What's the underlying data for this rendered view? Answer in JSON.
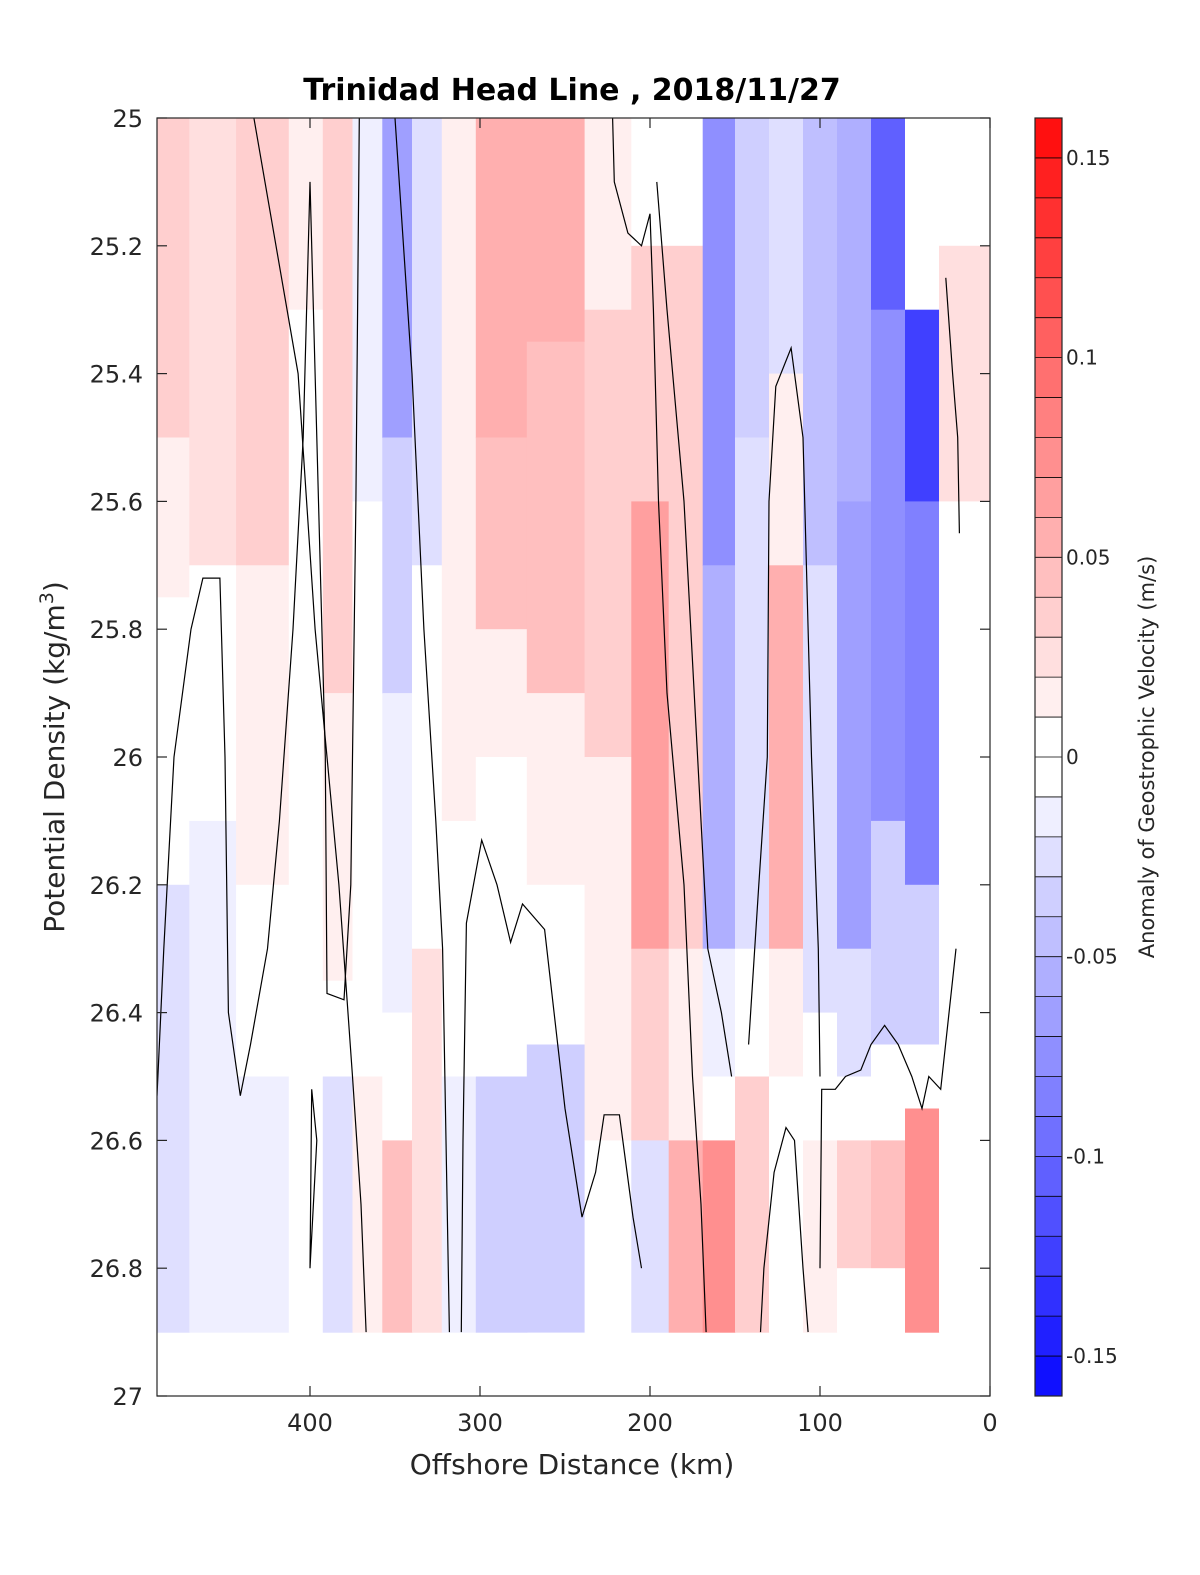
{
  "chart_data": {
    "type": "heatmap",
    "title": "Trinidad Head Line , 2018/11/27",
    "xlabel": "Offshore Distance (km)",
    "ylabel_main": "Potential Density (kg/m",
    "ylabel_sup": "3",
    "ylabel_tail": ")",
    "colorbar_label": "Anomaly of Geostrophic Velocity (m/s)",
    "xlim": [
      490,
      0
    ],
    "x_reversed": true,
    "ylim": [
      25,
      27
    ],
    "y_reversed": true,
    "clim": [
      -0.16,
      0.16
    ],
    "contour_step": 0.01,
    "x_ticks": [
      400,
      300,
      200,
      100,
      0
    ],
    "x_tick_labels": [
      "400",
      "300",
      "200",
      "100",
      "0"
    ],
    "y_ticks": [
      25,
      25.2,
      25.4,
      25.6,
      25.8,
      26,
      26.2,
      26.4,
      26.6,
      26.8,
      27
    ],
    "y_tick_labels": [
      "25",
      "25.2",
      "25.4",
      "25.6",
      "25.8",
      "26",
      "26.2",
      "26.4",
      "26.6",
      "26.8",
      "27"
    ],
    "colorbar_ticks": [
      0.15,
      0.1,
      0.05,
      0,
      -0.05,
      -0.1,
      -0.15
    ],
    "colorbar_tick_labels": [
      "0.15",
      "0.1",
      "0.05",
      "0",
      "-0.05",
      "-0.1",
      "-0.15"
    ],
    "colors": {
      "positive": "#ff0000",
      "negative": "#0000ff",
      "zero": "#ffffff",
      "contour": "#000000"
    },
    "columns": [
      {
        "x": 480,
        "segments": [
          {
            "y1": 25.0,
            "y2": 25.5,
            "v": 0.03
          },
          {
            "y1": 25.5,
            "y2": 25.75,
            "v": 0.012
          },
          {
            "y1": 25.75,
            "y2": 26.2,
            "v": 0.0
          },
          {
            "y1": 26.2,
            "y2": 26.9,
            "v": -0.015
          }
        ]
      },
      {
        "x": 462,
        "segments": [
          {
            "y1": 25.0,
            "y2": 25.7,
            "v": 0.02
          },
          {
            "y1": 25.7,
            "y2": 26.1,
            "v": 0.0
          },
          {
            "y1": 26.1,
            "y2": 26.9,
            "v": -0.01
          }
        ]
      },
      {
        "x": 425,
        "segments": [
          {
            "y1": 25.0,
            "y2": 25.7,
            "v": 0.03
          },
          {
            "y1": 25.7,
            "y2": 26.2,
            "v": 0.012
          },
          {
            "y1": 26.2,
            "y2": 26.5,
            "v": 0.0
          },
          {
            "y1": 26.5,
            "y2": 26.9,
            "v": -0.012
          }
        ]
      },
      {
        "x": 400,
        "segments": [
          {
            "y1": 25.0,
            "y2": 25.3,
            "v": 0.01
          },
          {
            "y1": 25.3,
            "y2": 26.9,
            "v": 0.0
          }
        ]
      },
      {
        "x": 385,
        "segments": [
          {
            "y1": 25.0,
            "y2": 25.9,
            "v": 0.03
          },
          {
            "y1": 25.9,
            "y2": 26.35,
            "v": 0.012
          },
          {
            "y1": 26.35,
            "y2": 26.5,
            "v": 0.0
          },
          {
            "y1": 26.5,
            "y2": 26.9,
            "v": -0.015
          }
        ]
      },
      {
        "x": 365,
        "segments": [
          {
            "y1": 25.0,
            "y2": 25.6,
            "v": -0.01
          },
          {
            "y1": 25.6,
            "y2": 26.5,
            "v": 0.0
          },
          {
            "y1": 26.5,
            "y2": 26.9,
            "v": 0.012
          }
        ]
      },
      {
        "x": 350,
        "segments": [
          {
            "y1": 25.0,
            "y2": 25.5,
            "v": -0.06
          },
          {
            "y1": 25.5,
            "y2": 25.9,
            "v": -0.03
          },
          {
            "y1": 25.9,
            "y2": 26.4,
            "v": -0.012
          },
          {
            "y1": 26.4,
            "y2": 26.6,
            "v": 0.0
          },
          {
            "y1": 26.6,
            "y2": 26.9,
            "v": 0.035
          }
        ]
      },
      {
        "x": 330,
        "segments": [
          {
            "y1": 25.0,
            "y2": 25.7,
            "v": -0.02
          },
          {
            "y1": 25.7,
            "y2": 26.3,
            "v": 0.0
          },
          {
            "y1": 26.3,
            "y2": 26.9,
            "v": 0.015
          }
        ]
      },
      {
        "x": 315,
        "segments": [
          {
            "y1": 25.0,
            "y2": 26.1,
            "v": 0.012
          },
          {
            "y1": 26.1,
            "y2": 26.5,
            "v": 0.0
          },
          {
            "y1": 26.5,
            "y2": 26.9,
            "v": -0.01
          }
        ]
      },
      {
        "x": 290,
        "segments": [
          {
            "y1": 25.0,
            "y2": 25.5,
            "v": 0.05
          },
          {
            "y1": 25.5,
            "y2": 25.8,
            "v": 0.035
          },
          {
            "y1": 25.8,
            "y2": 26.0,
            "v": 0.012
          },
          {
            "y1": 26.0,
            "y2": 26.5,
            "v": 0.0
          },
          {
            "y1": 26.5,
            "y2": 26.9,
            "v": -0.025
          }
        ]
      },
      {
        "x": 255,
        "segments": [
          {
            "y1": 25.0,
            "y2": 25.35,
            "v": 0.05
          },
          {
            "y1": 25.35,
            "y2": 25.9,
            "v": 0.035
          },
          {
            "y1": 25.9,
            "y2": 26.2,
            "v": 0.012
          },
          {
            "y1": 26.2,
            "y2": 26.45,
            "v": 0.0
          },
          {
            "y1": 26.45,
            "y2": 26.9,
            "v": -0.025
          }
        ]
      },
      {
        "x": 222,
        "segments": [
          {
            "y1": 25.0,
            "y2": 25.3,
            "v": 0.012
          },
          {
            "y1": 25.3,
            "y2": 26.0,
            "v": 0.025
          },
          {
            "y1": 26.0,
            "y2": 26.6,
            "v": 0.012
          },
          {
            "y1": 26.6,
            "y2": 26.9,
            "v": 0.0
          }
        ]
      },
      {
        "x": 200,
        "segments": [
          {
            "y1": 25.0,
            "y2": 25.2,
            "v": 0.0
          },
          {
            "y1": 25.2,
            "y2": 25.6,
            "v": 0.025
          },
          {
            "y1": 25.6,
            "y2": 26.3,
            "v": 0.055
          },
          {
            "y1": 26.3,
            "y2": 26.6,
            "v": 0.025
          },
          {
            "y1": 26.6,
            "y2": 26.9,
            "v": -0.015
          }
        ]
      },
      {
        "x": 178,
        "segments": [
          {
            "y1": 25.0,
            "y2": 25.2,
            "v": 0.0
          },
          {
            "y1": 25.2,
            "y2": 26.3,
            "v": 0.025
          },
          {
            "y1": 26.3,
            "y2": 26.6,
            "v": 0.012
          },
          {
            "y1": 26.6,
            "y2": 26.9,
            "v": 0.045
          }
        ]
      },
      {
        "x": 160,
        "segments": [
          {
            "y1": 25.0,
            "y2": 25.7,
            "v": -0.07
          },
          {
            "y1": 25.7,
            "y2": 26.3,
            "v": -0.045
          },
          {
            "y1": 26.3,
            "y2": 26.5,
            "v": -0.012
          },
          {
            "y1": 26.5,
            "y2": 26.6,
            "v": 0.0
          },
          {
            "y1": 26.6,
            "y2": 26.9,
            "v": 0.07
          }
        ]
      },
      {
        "x": 140,
        "segments": [
          {
            "y1": 25.0,
            "y2": 25.5,
            "v": -0.03
          },
          {
            "y1": 25.5,
            "y2": 26.3,
            "v": -0.02
          },
          {
            "y1": 26.3,
            "y2": 26.5,
            "v": 0.0
          },
          {
            "y1": 26.5,
            "y2": 26.9,
            "v": 0.025
          }
        ]
      },
      {
        "x": 120,
        "segments": [
          {
            "y1": 25.0,
            "y2": 25.4,
            "v": -0.02
          },
          {
            "y1": 25.4,
            "y2": 25.7,
            "v": 0.012
          },
          {
            "y1": 25.7,
            "y2": 26.3,
            "v": 0.045
          },
          {
            "y1": 26.3,
            "y2": 26.5,
            "v": 0.012
          },
          {
            "y1": 26.5,
            "y2": 26.9,
            "v": 0.0
          }
        ]
      },
      {
        "x": 100,
        "segments": [
          {
            "y1": 25.0,
            "y2": 25.7,
            "v": -0.04
          },
          {
            "y1": 25.7,
            "y2": 26.4,
            "v": -0.02
          },
          {
            "y1": 26.4,
            "y2": 26.6,
            "v": 0.0
          },
          {
            "y1": 26.6,
            "y2": 26.9,
            "v": 0.012
          }
        ]
      },
      {
        "x": 80,
        "segments": [
          {
            "y1": 25.0,
            "y2": 25.6,
            "v": -0.05
          },
          {
            "y1": 25.6,
            "y2": 26.3,
            "v": -0.06
          },
          {
            "y1": 26.3,
            "y2": 26.5,
            "v": -0.02
          },
          {
            "y1": 26.5,
            "y2": 26.6,
            "v": 0.0
          },
          {
            "y1": 26.6,
            "y2": 26.8,
            "v": 0.03
          },
          {
            "y1": 26.8,
            "y2": 26.9,
            "v": 0.0
          }
        ]
      },
      {
        "x": 60,
        "segments": [
          {
            "y1": 25.0,
            "y2": 25.3,
            "v": -0.1
          },
          {
            "y1": 25.3,
            "y2": 26.1,
            "v": -0.07
          },
          {
            "y1": 26.1,
            "y2": 26.45,
            "v": -0.03
          },
          {
            "y1": 26.45,
            "y2": 26.6,
            "v": 0.0
          },
          {
            "y1": 26.6,
            "y2": 26.8,
            "v": 0.04
          },
          {
            "y1": 26.8,
            "y2": 26.9,
            "v": 0.0
          }
        ]
      },
      {
        "x": 40,
        "segments": [
          {
            "y1": 25.0,
            "y2": 25.3,
            "v": 0.0
          },
          {
            "y1": 25.3,
            "y2": 25.6,
            "v": -0.12
          },
          {
            "y1": 25.6,
            "y2": 26.2,
            "v": -0.08
          },
          {
            "y1": 26.2,
            "y2": 26.45,
            "v": -0.03
          },
          {
            "y1": 26.45,
            "y2": 26.55,
            "v": 0.0
          },
          {
            "y1": 26.55,
            "y2": 26.9,
            "v": 0.07
          }
        ]
      },
      {
        "x": 20,
        "segments": [
          {
            "y1": 25.0,
            "y2": 25.2,
            "v": 0.0
          },
          {
            "y1": 25.2,
            "y2": 25.6,
            "v": 0.02
          },
          {
            "y1": 25.6,
            "y2": 26.2,
            "v": 0.0
          },
          {
            "y1": 26.2,
            "y2": 26.9,
            "v": 0.0
          }
        ]
      }
    ],
    "zero_contours": [
      [
        [
          490,
          26.53
        ],
        [
          486,
          26.3
        ],
        [
          484,
          26.2
        ],
        [
          480,
          26.0
        ],
        [
          470,
          25.8
        ],
        [
          463,
          25.72
        ],
        [
          453,
          25.72
        ],
        [
          450,
          26.0
        ],
        [
          448,
          26.4
        ],
        [
          441,
          26.53
        ],
        [
          435,
          26.45
        ],
        [
          425,
          26.3
        ],
        [
          418,
          26.1
        ],
        [
          410,
          25.8
        ],
        [
          404,
          25.5
        ],
        [
          400,
          25.1
        ],
        [
          396,
          25.5
        ],
        [
          391,
          26.0
        ],
        [
          390,
          26.37
        ],
        [
          380,
          26.38
        ],
        [
          376,
          26.2
        ],
        [
          373,
          25.6
        ],
        [
          371,
          25.0
        ]
      ],
      [
        [
          400,
          26.8
        ],
        [
          399,
          26.52
        ],
        [
          396,
          26.6
        ],
        [
          398,
          26.7
        ],
        [
          400,
          26.8
        ]
      ],
      [
        [
          367,
          26.9
        ],
        [
          370,
          26.7
        ],
        [
          375,
          26.5
        ],
        [
          383,
          26.2
        ],
        [
          397,
          25.8
        ],
        [
          407,
          25.4
        ],
        [
          433,
          25.0
        ]
      ],
      [
        [
          318,
          26.9
        ],
        [
          320,
          26.6
        ],
        [
          322,
          26.3
        ],
        [
          326,
          26.1
        ],
        [
          333,
          25.8
        ],
        [
          340,
          25.4
        ],
        [
          350,
          25.0
        ]
      ],
      [
        [
          222,
          25.0
        ],
        [
          221,
          25.1
        ],
        [
          213,
          25.18
        ],
        [
          205,
          25.2
        ],
        [
          200,
          25.15
        ],
        [
          198,
          25.3
        ],
        [
          195,
          25.6
        ],
        [
          190,
          25.9
        ],
        [
          180,
          26.2
        ],
        [
          175,
          26.5
        ],
        [
          170,
          26.7
        ],
        [
          167,
          26.9
        ]
      ],
      [
        [
          311,
          26.9
        ],
        [
          310,
          26.6
        ],
        [
          308,
          26.26
        ],
        [
          299,
          26.13
        ],
        [
          290,
          26.2
        ],
        [
          282,
          26.29
        ],
        [
          275,
          26.23
        ],
        [
          262,
          26.27
        ],
        [
          250,
          26.55
        ],
        [
          240,
          26.72
        ],
        [
          232,
          26.65
        ],
        [
          227,
          26.56
        ],
        [
          218,
          26.56
        ],
        [
          210,
          26.72
        ],
        [
          205,
          26.8
        ]
      ],
      [
        [
          107,
          26.9
        ],
        [
          110,
          26.8
        ],
        [
          115,
          26.6
        ],
        [
          120,
          26.58
        ],
        [
          127,
          26.65
        ],
        [
          133,
          26.8
        ],
        [
          135,
          26.9
        ]
      ],
      [
        [
          152,
          26.5
        ],
        [
          158,
          26.4
        ],
        [
          166,
          26.3
        ],
        [
          172,
          26.0
        ],
        [
          180,
          25.6
        ],
        [
          190,
          25.3
        ],
        [
          196,
          25.1
        ]
      ],
      [
        [
          100,
          26.8
        ],
        [
          99,
          26.52
        ],
        [
          91,
          26.52
        ],
        [
          85,
          26.5
        ],
        [
          76,
          26.49
        ],
        [
          70,
          26.45
        ],
        [
          62,
          26.42
        ],
        [
          54,
          26.45
        ],
        [
          46,
          26.5
        ],
        [
          40,
          26.55
        ],
        [
          36,
          26.5
        ],
        [
          29,
          26.52
        ],
        [
          20,
          26.3
        ]
      ],
      [
        [
          100,
          26.5
        ],
        [
          101,
          26.3
        ],
        [
          105,
          26.0
        ],
        [
          110,
          25.5
        ],
        [
          117,
          25.36
        ],
        [
          126,
          25.42
        ],
        [
          130,
          25.6
        ],
        [
          131,
          26.0
        ],
        [
          136,
          26.2
        ],
        [
          142,
          26.45
        ]
      ],
      [
        [
          18,
          25.65
        ],
        [
          19,
          25.5
        ],
        [
          22,
          25.4
        ],
        [
          26,
          25.25
        ]
      ]
    ]
  }
}
